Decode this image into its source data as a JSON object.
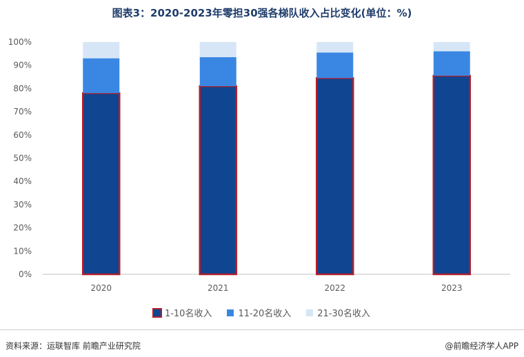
{
  "title": "图表3：2020-2023年零担30强各梯队收入占比变化(单位：%)",
  "colors": {
    "top10": "#0f4591",
    "top10_border": "#b11f2b",
    "rank11_20": "#3a87e3",
    "rank21_30": "#d6e6f7"
  },
  "chart_data": {
    "type": "bar",
    "stacked": true,
    "categories": [
      "2020",
      "2021",
      "2022",
      "2023"
    ],
    "series": [
      {
        "name": "1-10名收入",
        "values": [
          78,
          81,
          84.5,
          85.5
        ]
      },
      {
        "name": "11-20名收入",
        "values": [
          15,
          12.5,
          11,
          10.5
        ]
      },
      {
        "name": "21-30名收入",
        "values": [
          7,
          6.5,
          4.5,
          4
        ]
      }
    ],
    "y_ticks": [
      "0%",
      "10%",
      "20%",
      "30%",
      "40%",
      "50%",
      "60%",
      "70%",
      "80%",
      "90%",
      "100%"
    ],
    "ylim": [
      0,
      100
    ],
    "legend_position": "bottom"
  },
  "footer": {
    "source": "资料来源：运联智库 前瞻产业研究院",
    "brand": "@前瞻经济学人APP"
  }
}
